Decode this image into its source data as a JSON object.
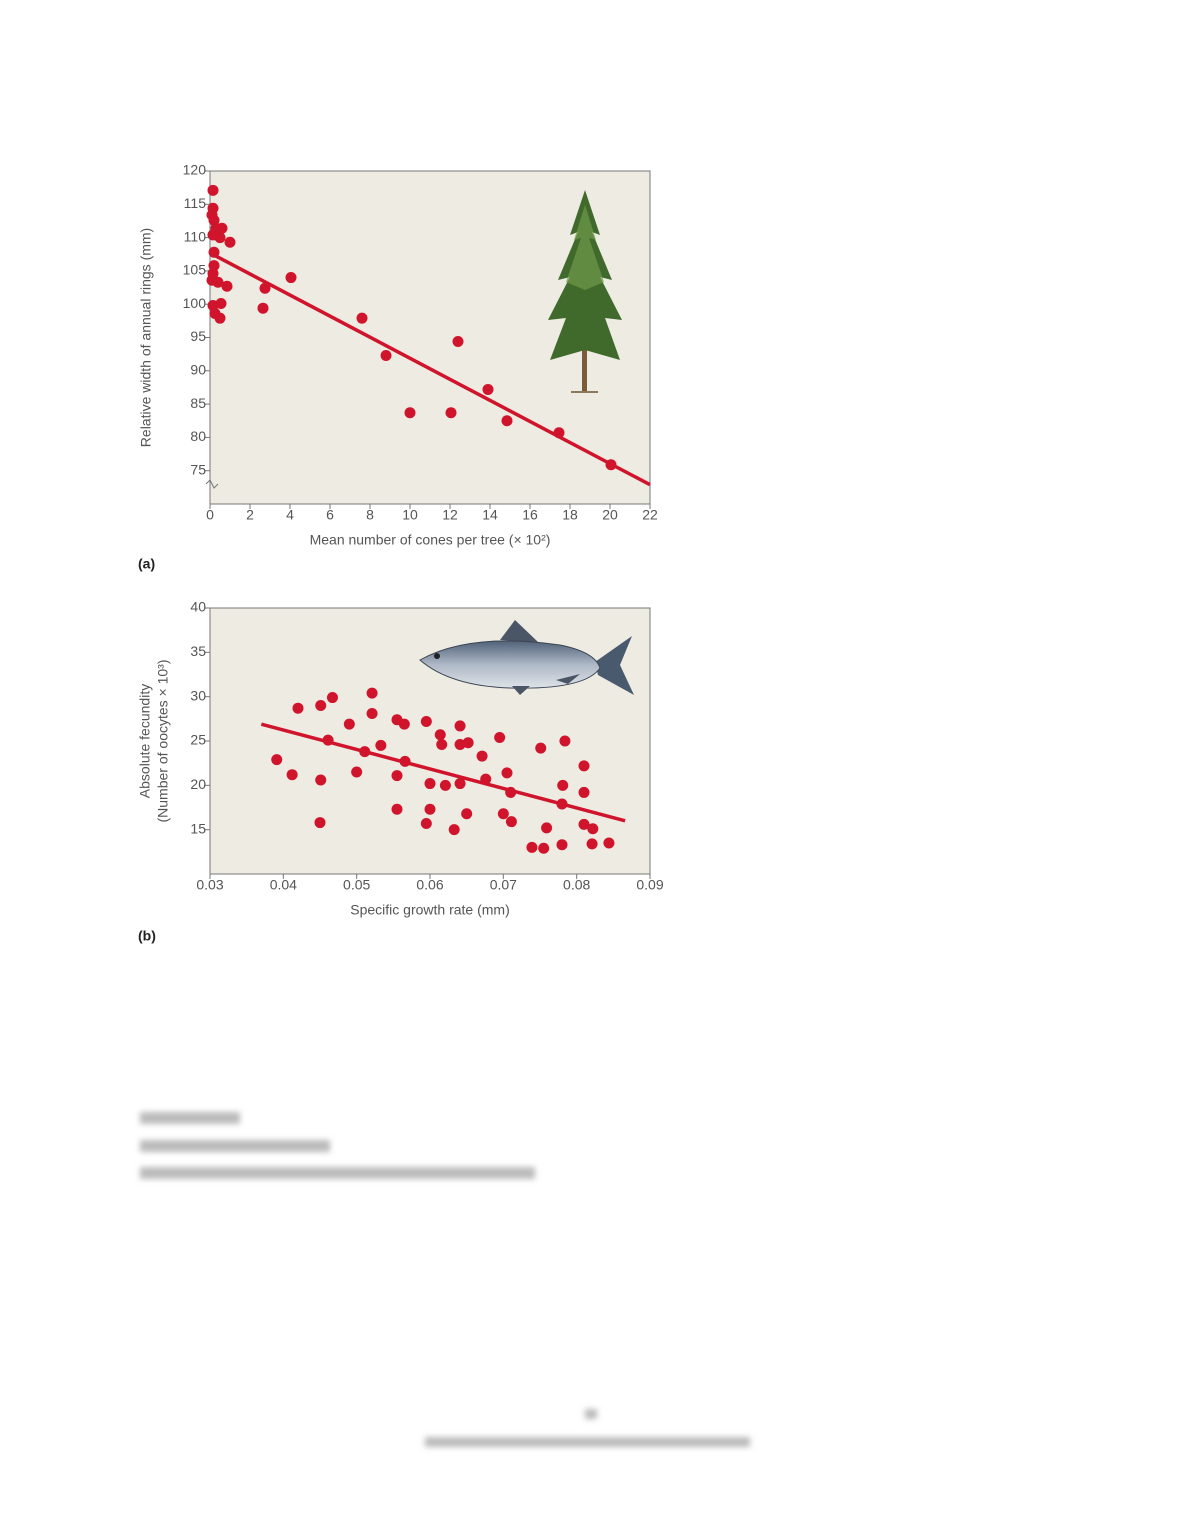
{
  "chart_data": [
    {
      "type": "scatter",
      "label": "(a)",
      "x_label": "Mean number of cones per tree (× 10²)",
      "y_label": "Relative width of annual rings (mm)",
      "color": "#d0142c",
      "grid": false,
      "xlim": [
        0,
        22
      ],
      "xticks": [
        0,
        2,
        4,
        6,
        8,
        10,
        12,
        14,
        16,
        18,
        20,
        22
      ],
      "ylim": [
        70,
        120
      ],
      "yticks": [
        75,
        80,
        85,
        90,
        95,
        100,
        105,
        110,
        115,
        120
      ],
      "x": [
        0.15,
        0.15,
        0.1,
        0.2,
        0.3,
        0.6,
        0.15,
        0.5,
        1.0,
        0.2,
        0.2,
        0.15,
        0.1,
        0.4,
        0.85,
        0.15,
        0.55,
        0.25,
        0.5,
        2.75,
        2.65,
        4.05,
        7.6,
        8.8,
        12.4,
        13.9,
        10,
        12.05,
        14.85,
        17.45,
        20.05
      ],
      "values": [
        117.1,
        114.4,
        113.4,
        112.6,
        111.4,
        111.4,
        110.4,
        110,
        109.3,
        107.8,
        105.8,
        104.6,
        103.6,
        103.3,
        102.7,
        99.8,
        100.1,
        98.6,
        97.9,
        102.4,
        99.4,
        104,
        97.9,
        92.3,
        94.4,
        87.2,
        83.7,
        83.7,
        82.5,
        80.7,
        75.9
      ],
      "trend": {
        "x": [
          0,
          22
        ],
        "values": [
          107.7,
          72.9
        ]
      }
    },
    {
      "type": "scatter",
      "label": "(b)",
      "x_label": "Specific growth rate (mm)",
      "y_label": [
        "Absolute fecundity",
        "(Number of oocytes × 10³)"
      ],
      "color": "#d0142c",
      "grid": false,
      "xlim": [
        0.03,
        0.09
      ],
      "xticks": [
        0.03,
        0.04,
        0.05,
        0.06,
        0.07,
        0.08,
        0.09
      ],
      "ylim": [
        10,
        40
      ],
      "yticks": [
        15,
        20,
        25,
        30,
        35,
        40
      ],
      "x": [
        0.0391,
        0.0412,
        0.042,
        0.0451,
        0.0467,
        0.0461,
        0.0451,
        0.045,
        0.049,
        0.05,
        0.0521,
        0.0521,
        0.0511,
        0.0533,
        0.0555,
        0.0565,
        0.0566,
        0.0555,
        0.0555,
        0.0595,
        0.0614,
        0.0616,
        0.06,
        0.06,
        0.0595,
        0.0621,
        0.0641,
        0.0641,
        0.0652,
        0.0671,
        0.0641,
        0.0676,
        0.065,
        0.0633,
        0.0695,
        0.0705,
        0.071,
        0.07,
        0.0711,
        0.0751,
        0.0784,
        0.0781,
        0.078,
        0.081,
        0.081,
        0.081,
        0.0822,
        0.0759,
        0.0739,
        0.0755,
        0.078,
        0.0821,
        0.0844
      ],
      "values": [
        22.9,
        21.2,
        28.7,
        29,
        29.9,
        25.1,
        20.6,
        15.8,
        26.9,
        21.5,
        30.4,
        28.1,
        23.8,
        24.5,
        27.4,
        26.9,
        22.7,
        21.1,
        17.3,
        27.2,
        25.7,
        24.6,
        20.2,
        17.3,
        15.7,
        20,
        26.7,
        24.6,
        24.8,
        23.3,
        20.2,
        20.7,
        16.8,
        15,
        25.4,
        21.4,
        19.2,
        16.8,
        15.9,
        24.2,
        25,
        20,
        17.9,
        22.2,
        19.2,
        15.6,
        15.1,
        15.2,
        13,
        12.9,
        13.3,
        13.4,
        13.5
      ],
      "trend": {
        "x": [
          0.037,
          0.0866
        ],
        "values": [
          26.9,
          16
        ]
      }
    }
  ]
}
